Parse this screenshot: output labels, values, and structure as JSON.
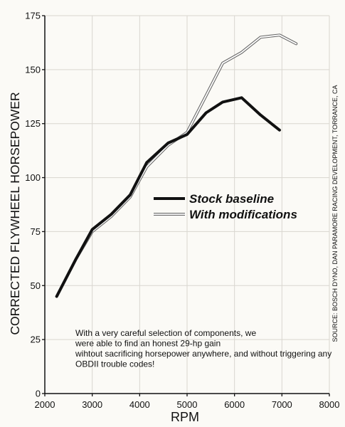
{
  "chart_data": {
    "type": "line",
    "xlabel": "RPM",
    "ylabel": "CORRECTED FLYWHEEL HORSEPOWER",
    "xlim": [
      2000,
      8000
    ],
    "ylim": [
      0,
      175
    ],
    "xticks": [
      2000,
      3000,
      4000,
      5000,
      6000,
      7000,
      8000
    ],
    "yticks": [
      0,
      25,
      50,
      75,
      100,
      125,
      150,
      175
    ],
    "grid": true,
    "legend_position": "middle-right",
    "series": [
      {
        "name": "Stock baseline",
        "color": "#111111",
        "style": "solid-thick",
        "x": [
          2250,
          2650,
          3000,
          3400,
          3800,
          4150,
          4600,
          5000,
          5400,
          5750,
          6150,
          6550,
          6950
        ],
        "y": [
          45,
          62,
          76,
          83,
          92,
          107,
          116,
          120,
          130,
          135,
          137,
          129,
          122
        ]
      },
      {
        "name": "With modifications",
        "color": "#ffffff",
        "style": "double-outline",
        "x": [
          2250,
          2650,
          3000,
          3400,
          3800,
          4150,
          4600,
          5000,
          5400,
          5750,
          6150,
          6550,
          6950,
          7300
        ],
        "y": [
          45,
          62,
          75,
          82,
          91,
          105,
          115,
          121,
          138,
          153,
          158,
          165,
          166,
          162
        ]
      }
    ],
    "annotation": "With a very careful selection of components, we were able to find an honest 29-hp gain wihtout sacrificing horsepower anywhere, and without triggering any OBDII trouble codes!",
    "source": "SOURCE: BOSCH DYNO, DAN PARAMORE RACING DEVELOPMENT, TORRANCE, CA"
  }
}
